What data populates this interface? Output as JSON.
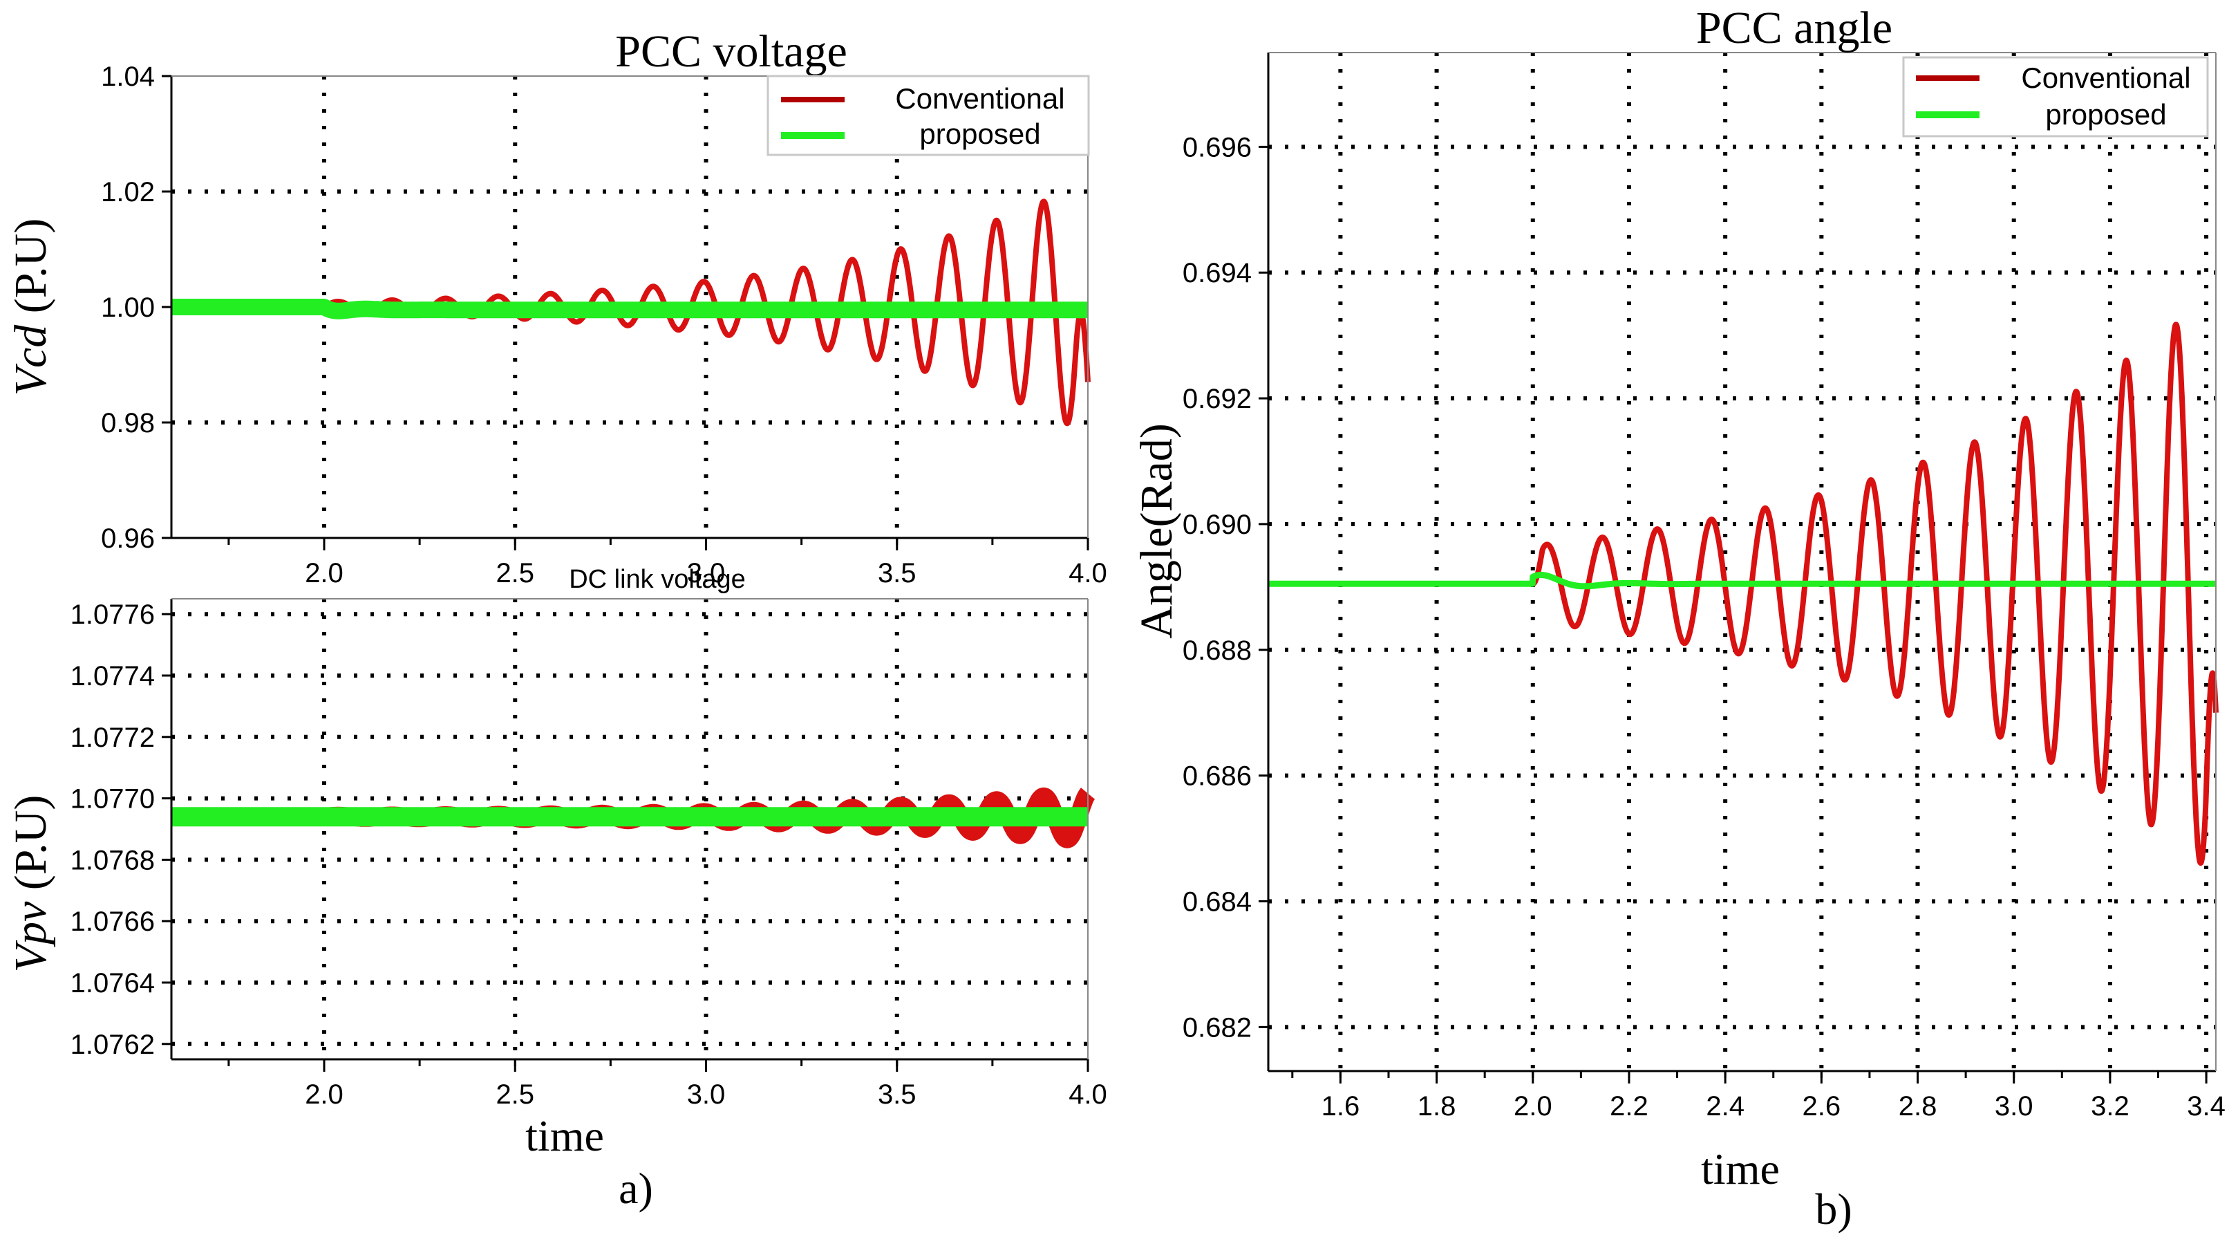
{
  "colors": {
    "conventional": "#d91111",
    "conventional_legend": "#b00000",
    "proposed": "#22ee22",
    "axis": "#000000",
    "grid": "#000000",
    "legend_border": "#c8c8c8"
  },
  "captions": {
    "a": "a)",
    "b": "b)"
  },
  "chart_data": [
    {
      "id": "pcc-voltage",
      "type": "line",
      "title": "PCC voltage",
      "xlabel": "",
      "ylabel_italic": "Vcd",
      "ylabel_rest": " (P.U)",
      "xlim": [
        1.6,
        4.0
      ],
      "ylim": [
        0.96,
        1.04
      ],
      "xticks": [
        2.0,
        2.5,
        3.0,
        3.5,
        4.0
      ],
      "xtick_labels": [
        "2.0",
        "2.5",
        "3.0",
        "3.5",
        "4.0"
      ],
      "yticks": [
        0.96,
        0.98,
        1.0,
        1.02,
        1.04
      ],
      "ytick_labels": [
        "0.96",
        "0.98",
        "1.00",
        "1.02",
        "1.04"
      ],
      "grid": true,
      "legend": {
        "position": "top-right",
        "entries": [
          "Conventional",
          "proposed"
        ]
      },
      "series": [
        {
          "name": "Conventional",
          "base": 1.0,
          "t_event": 2.0,
          "amp_start": 0.0009,
          "amp_end": 0.022,
          "freq_start": 7.0,
          "freq_end": 7.6,
          "end_value": 0.987
        },
        {
          "name": "proposed",
          "base": 1.0,
          "t_event": 2.0,
          "dip": -0.0008,
          "settle": 0.9995
        }
      ]
    },
    {
      "id": "dc-link-voltage",
      "type": "line",
      "title": "DC link voltage",
      "xlabel": "time",
      "ylabel_italic": "Vpv",
      "ylabel_rest": " (P.U)",
      "xlim": [
        1.6,
        4.0
      ],
      "ylim": [
        1.07615,
        1.07765
      ],
      "xticks": [
        2.0,
        2.5,
        3.0,
        3.5,
        4.0
      ],
      "xtick_labels": [
        "2.0",
        "2.5",
        "3.0",
        "3.5",
        "4.0"
      ],
      "yticks": [
        1.0762,
        1.0764,
        1.0766,
        1.0768,
        1.077,
        1.0772,
        1.0774,
        1.0776
      ],
      "ytick_labels": [
        "1.0762",
        "1.0764",
        "1.0766",
        "1.0768",
        "1.0770",
        "1.0772",
        "1.0774",
        "1.0776"
      ],
      "grid": true,
      "series": [
        {
          "name": "Conventional",
          "base": 1.07694,
          "t_event": 2.0,
          "amp_start": 3e-06,
          "amp_end": 8e-05,
          "freq_start": 7.0,
          "freq_end": 7.6
        },
        {
          "name": "proposed",
          "base": 1.07694
        }
      ]
    },
    {
      "id": "pcc-angle",
      "type": "line",
      "title": "PCC angle",
      "xlabel": "time",
      "ylabel": "Angle(Rad)",
      "xlim": [
        1.45,
        3.42
      ],
      "ylim": [
        0.6813,
        0.6975
      ],
      "xticks": [
        1.6,
        1.8,
        2.0,
        2.2,
        2.4,
        2.6,
        2.8,
        3.0,
        3.2,
        3.4
      ],
      "xtick_labels": [
        "1.6",
        "1.8",
        "2.0",
        "2.2",
        "2.4",
        "2.6",
        "2.8",
        "3.0",
        "3.2",
        "3.4"
      ],
      "yticks": [
        0.682,
        0.684,
        0.686,
        0.688,
        0.69,
        0.692,
        0.694,
        0.696
      ],
      "ytick_labels": [
        "0.682",
        "0.684",
        "0.686",
        "0.688",
        "0.690",
        "0.692",
        "0.694",
        "0.696"
      ],
      "grid": true,
      "legend": {
        "position": "top-right",
        "entries": [
          "Conventional",
          "proposed"
        ]
      },
      "series": [
        {
          "name": "Conventional",
          "base": 0.68905,
          "t_event": 2.0,
          "amp_start": 0.0006,
          "amp_end": 0.00465,
          "freq_start": 8.6,
          "freq_end": 9.2,
          "end_value": 0.687
        },
        {
          "name": "proposed",
          "base": 0.68905,
          "t_event": 2.0,
          "peak": 0.6892
        }
      ]
    }
  ]
}
